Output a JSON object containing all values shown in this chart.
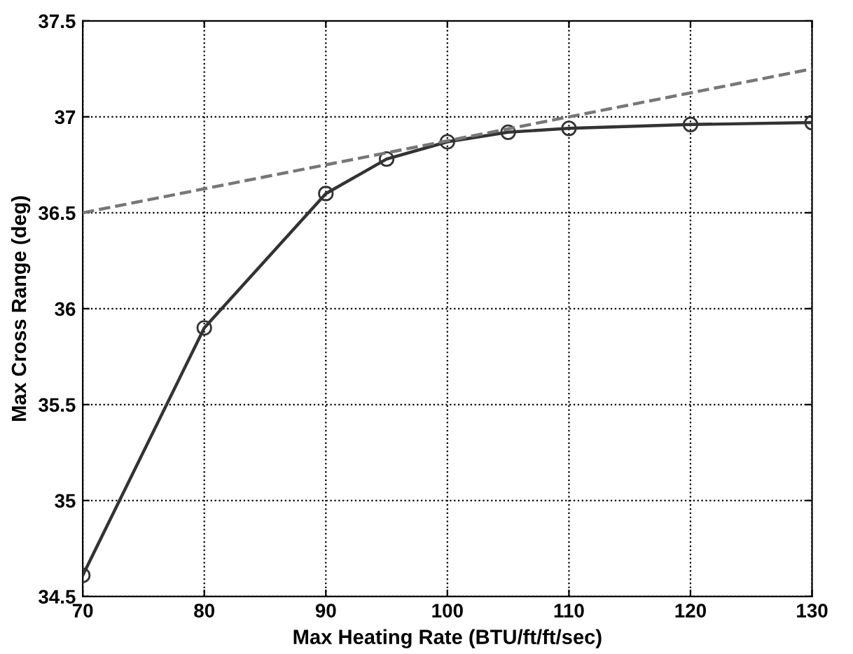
{
  "chart_data": {
    "type": "line",
    "xlabel": "Max Heating Rate (BTU/ft/ft/sec)",
    "ylabel": "Max Cross Range (deg)",
    "series": [
      {
        "color": "#333333",
        "marker": "circle",
        "line_style": "solid",
        "x": [
          70,
          80,
          90,
          95,
          100,
          105,
          110,
          120,
          130
        ],
        "values": [
          34.61,
          35.9,
          36.6,
          36.78,
          36.87,
          36.92,
          36.94,
          36.96,
          36.97
        ]
      },
      {
        "color": "#777777",
        "marker": "none",
        "line_style": "dashed",
        "x": [
          70,
          130
        ],
        "values": [
          36.5,
          37.25
        ]
      }
    ],
    "xlim": [
      70,
      130
    ],
    "xticks": [
      70,
      80,
      90,
      100,
      110,
      120,
      130
    ],
    "ylim": [
      34.5,
      37.5
    ],
    "yticks": [
      34.5,
      {
        "value": 35,
        "label": "35"
      },
      35.5,
      {
        "value": 36,
        "label": "36"
      },
      36.5,
      {
        "value": 37,
        "label": "37"
      },
      37.5
    ],
    "grid": true
  }
}
